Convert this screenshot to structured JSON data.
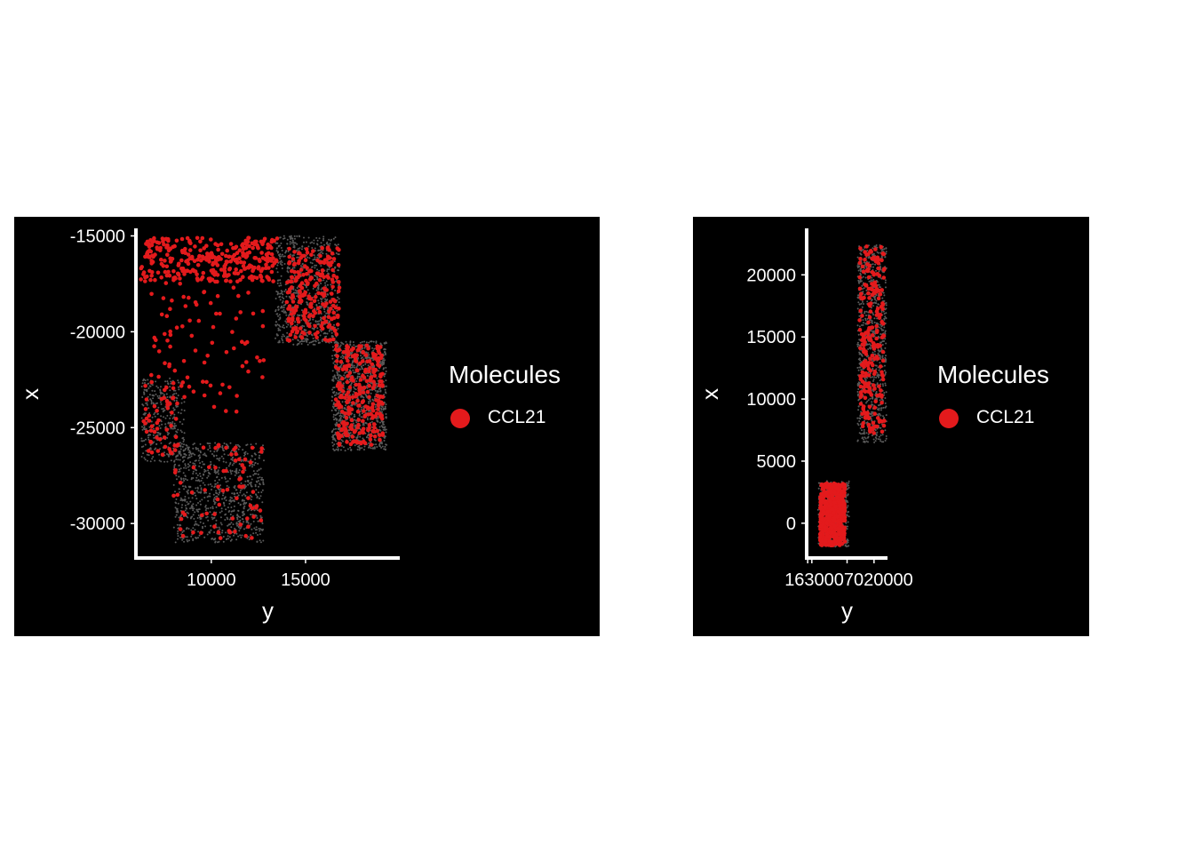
{
  "colors": {
    "panel_background": "#000000",
    "axis": "#ffffff",
    "molecule": "#e31a1c",
    "cell": "#5a5a5a"
  },
  "chart_data": [
    {
      "type": "scatter",
      "xlabel": "y",
      "ylabel": "x",
      "xlim": [
        6000,
        20000
      ],
      "ylim": [
        -31800,
        -14700
      ],
      "x_ticks": [
        10000,
        15000
      ],
      "x_tick_labels": [
        "10000",
        "15000"
      ],
      "y_ticks": [
        -15000,
        -20000,
        -25000,
        -30000
      ],
      "y_tick_labels": [
        "-15000",
        "-20000",
        "-25000",
        "-30000"
      ],
      "legend": {
        "title": "Molecules",
        "position": "right",
        "entries": [
          {
            "label": "CCL21",
            "color": "#e31a1c"
          }
        ]
      },
      "series": [
        {
          "name": "CCL21",
          "color": "#e31a1c",
          "regions": [
            {
              "x_range": [
                6200,
                13500
              ],
              "y_range": [
                -15100,
                -17400
              ],
              "count": 330
            },
            {
              "x_range": [
                6800,
                12800
              ],
              "y_range": [
                -17400,
                -24200
              ],
              "count": 90
            },
            {
              "x_range": [
                14000,
                16800
              ],
              "y_range": [
                -15600,
                -20500
              ],
              "count": 220
            },
            {
              "x_range": [
                16600,
                19100
              ],
              "y_range": [
                -20700,
                -25900
              ],
              "count": 260
            },
            {
              "x_range": [
                6400,
                8200
              ],
              "y_range": [
                -22600,
                -26500
              ],
              "count": 45
            },
            {
              "x_range": [
                8000,
                12700
              ],
              "y_range": [
                -25800,
                -30800
              ],
              "count": 75
            }
          ]
        }
      ],
      "cell_regions": [
        {
          "x_range": [
            13400,
            16800
          ],
          "y_range": [
            -15000,
            -20700
          ],
          "count": 800
        },
        {
          "x_range": [
            16400,
            19300
          ],
          "y_range": [
            -20500,
            -26200
          ],
          "count": 1100
        },
        {
          "x_range": [
            6300,
            8600
          ],
          "y_range": [
            -22400,
            -26800
          ],
          "count": 350
        },
        {
          "x_range": [
            8000,
            12800
          ],
          "y_range": [
            -25800,
            -31000
          ],
          "count": 900
        }
      ]
    },
    {
      "type": "scatter",
      "xlabel": "y",
      "ylabel": "x",
      "xlim": [
        16750,
        20650
      ],
      "ylim": [
        -2800,
        23600
      ],
      "x_ticks": [
        16800,
        17000,
        18700,
        20000
      ],
      "x_tick_labels": [
        "16800",
        "17000",
        "18700",
        "20000"
      ],
      "x_tick_label_text": "1630007020000",
      "y_ticks": [
        0,
        5000,
        10000,
        15000,
        20000
      ],
      "y_tick_labels": [
        "0",
        "5000",
        "10000",
        "15000",
        "20000"
      ],
      "legend": {
        "title": "Molecules",
        "position": "right",
        "entries": [
          {
            "label": "CCL21",
            "color": "#e31a1c"
          }
        ]
      },
      "series": [
        {
          "name": "CCL21",
          "color": "#e31a1c",
          "regions": [
            {
              "x_range": [
                17400,
                18600
              ],
              "y_range": [
                -1800,
                3200
              ],
              "count": 520
            },
            {
              "x_range": [
                19300,
                20500
              ],
              "y_range": [
                7000,
                22300
              ],
              "count": 230
            }
          ]
        }
      ],
      "cell_regions": [
        {
          "x_range": [
            17300,
            18800
          ],
          "y_range": [
            -1900,
            3400
          ],
          "count": 350
        },
        {
          "x_range": [
            19200,
            20600
          ],
          "y_range": [
            6500,
            22400
          ],
          "count": 900
        }
      ]
    }
  ]
}
